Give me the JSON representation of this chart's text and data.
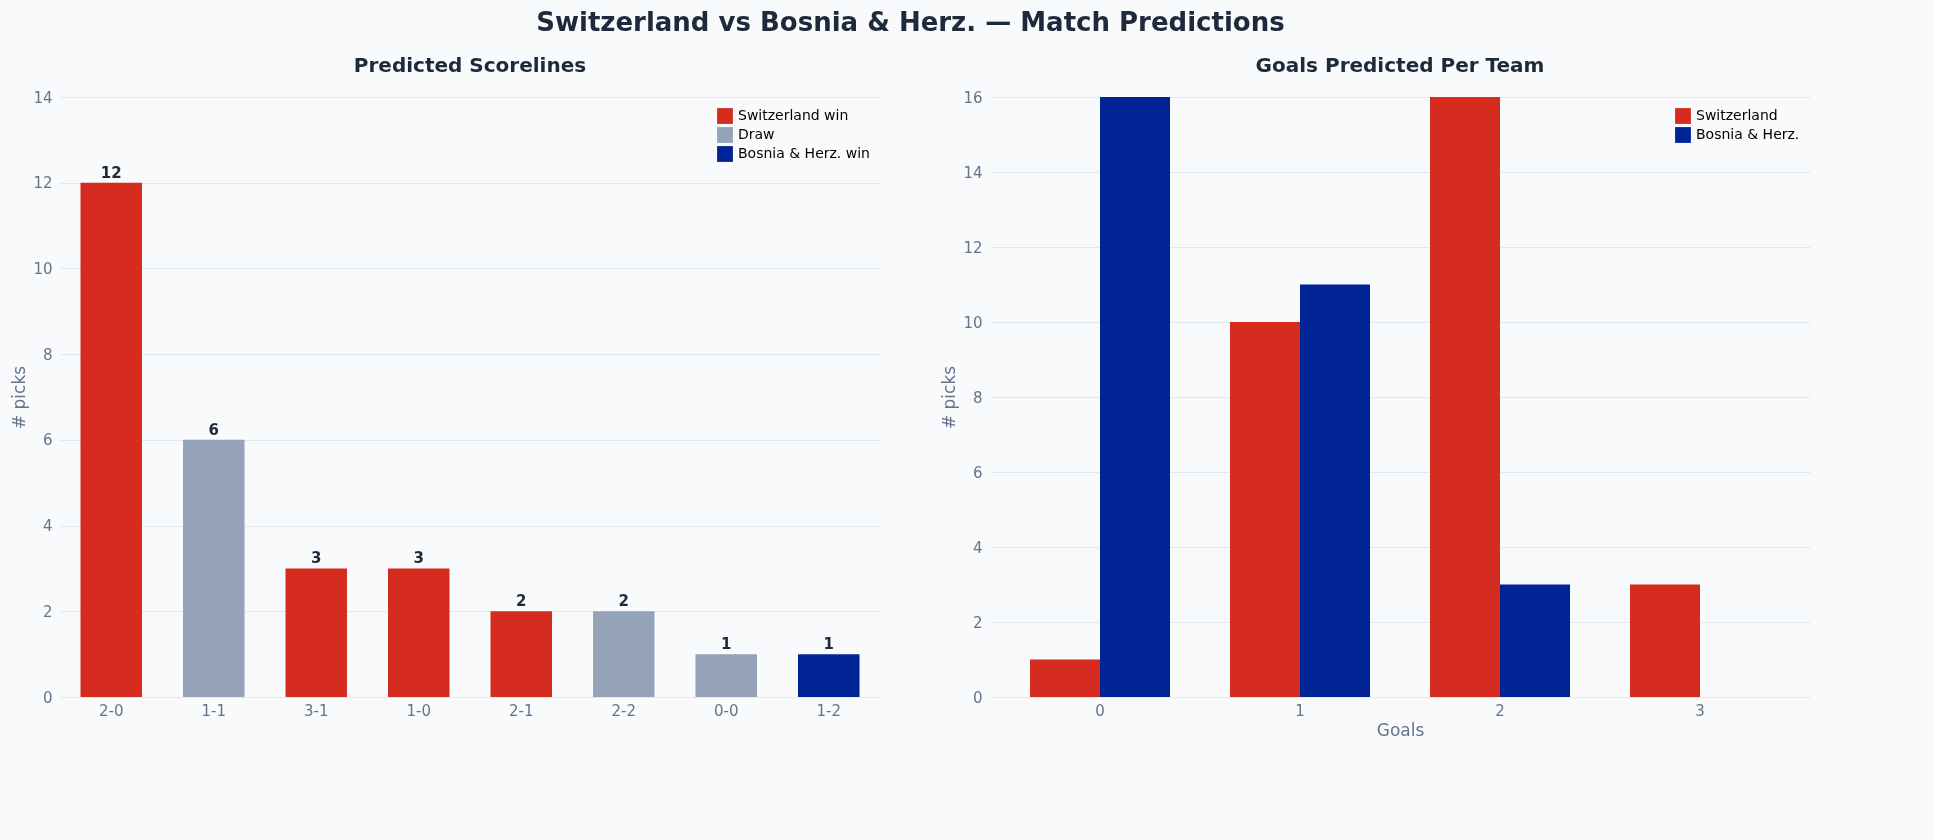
{
  "chart_data": [
    {
      "type": "bar",
      "title": "Predicted Scorelines",
      "annotations": [
        "Switzerland vs Bosnia & Herz.  —  Match Predictions"
      ],
      "ylabel": "# picks",
      "categories": [
        "2-0",
        "1-1",
        "3-1",
        "1-0",
        "2-1",
        "2-2",
        "0-0",
        "1-2"
      ],
      "stacked": true,
      "series": [
        {
          "name": "Switzerland win",
          "color": "#d62b1f",
          "values": [
            12,
            null,
            3,
            3,
            2,
            null,
            null,
            null
          ]
        },
        {
          "name": "Draw",
          "color": "#94a3b8",
          "values": [
            null,
            6,
            null,
            null,
            null,
            2,
            1,
            null
          ]
        },
        {
          "name": "Bosnia & Herz. win",
          "color": "#002395",
          "values": [
            null,
            null,
            null,
            null,
            null,
            null,
            null,
            1
          ]
        }
      ],
      "ylim": [
        0,
        14
      ],
      "yticks": [
        0,
        2,
        4,
        6,
        8,
        10,
        12,
        14
      ],
      "grid": "y",
      "legend": "top right",
      "data_labels": true
    },
    {
      "type": "bar",
      "title": "Goals Predicted Per Team",
      "ylabel": "# picks",
      "xlabel": "Goals",
      "categories": [
        "0",
        "1",
        "2",
        "3"
      ],
      "series": [
        {
          "name": "Switzerland",
          "color": "#d62b1f",
          "values": [
            1,
            10,
            16,
            3
          ]
        },
        {
          "name": "Bosnia & Herz.",
          "color": "#002395",
          "values": [
            16,
            11,
            3,
            0
          ]
        }
      ],
      "ylim": [
        0,
        16
      ],
      "yticks": [
        0,
        2,
        4,
        6,
        8,
        10,
        12,
        14,
        16
      ],
      "grid": "y",
      "legend": "top right"
    }
  ]
}
